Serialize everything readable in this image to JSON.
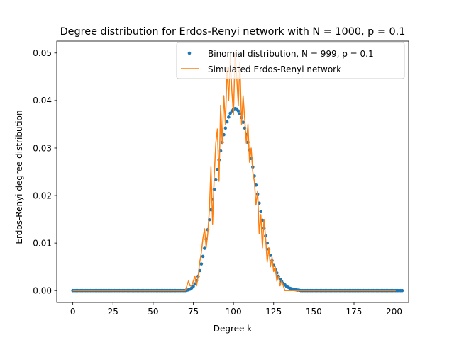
{
  "chart_data": {
    "type": "scatter",
    "title": "Degree distribution for Erdos-Renyi network with N = 1000, p = 0.1",
    "xlabel": "Degree k",
    "ylabel": "Erdos-Renyi degree distribution",
    "xlim": [
      -10,
      209
    ],
    "ylim": [
      -0.0025,
      0.0525
    ],
    "xticks": [
      "0",
      "25",
      "50",
      "75",
      "100",
      "125",
      "150",
      "175",
      "200"
    ],
    "yticks": [
      "0.00",
      "0.01",
      "0.02",
      "0.03",
      "0.04",
      "0.05"
    ],
    "grid": false,
    "legend": "top-right",
    "series": [
      {
        "name": "Binomial distribution, N = 999, p = 0.1",
        "kind": "points",
        "color": "#1f77b4",
        "x_start": 0,
        "x_step": 1,
        "values": [
          0,
          0,
          0,
          0,
          0,
          0,
          0,
          0,
          0,
          0,
          0,
          0,
          0,
          0,
          0,
          0,
          0,
          0,
          0,
          0,
          0,
          0,
          0,
          0,
          0,
          0,
          0,
          0,
          0,
          0,
          0,
          0,
          0,
          0,
          0,
          0,
          0,
          0,
          0,
          0,
          0,
          0,
          0,
          0,
          0,
          0,
          0,
          0,
          0,
          0,
          0,
          0,
          0,
          0,
          0,
          0,
          0,
          0,
          0,
          0,
          0,
          0,
          0,
          0,
          0,
          0,
          0,
          0,
          0,
          0,
          0,
          7e-05,
          0.00015,
          0.0003,
          0.00055,
          0.0009,
          0.0014,
          0.0021,
          0.003,
          0.0042,
          0.0056,
          0.0072,
          0.0089,
          0.0108,
          0.0128,
          0.0149,
          0.017,
          0.0192,
          0.0213,
          0.0234,
          0.0255,
          0.0275,
          0.0294,
          0.0312,
          0.0328,
          0.0342,
          0.0355,
          0.0365,
          0.0373,
          0.0378,
          0.0382,
          0.0383,
          0.0382,
          0.0378,
          0.0372,
          0.0364,
          0.0354,
          0.0342,
          0.0328,
          0.0312,
          0.0296,
          0.0278,
          0.026,
          0.0241,
          0.0222,
          0.0203,
          0.0184,
          0.0166,
          0.0148,
          0.0131,
          0.0115,
          0.01,
          0.0087,
          0.0074,
          0.0063,
          0.0053,
          0.0044,
          0.0037,
          0.003,
          0.0024,
          0.0019,
          0.0015,
          0.0012,
          0.0009,
          0.0007,
          0.0005,
          0.0004,
          0.0003,
          0.0002,
          0.00015,
          0.0001,
          7e-05,
          0,
          0,
          0,
          0,
          0,
          0,
          0,
          0,
          0,
          0,
          0,
          0,
          0,
          0,
          0,
          0,
          0,
          0,
          0,
          0,
          0,
          0,
          0,
          0,
          0,
          0,
          0,
          0,
          0,
          0,
          0,
          0,
          0,
          0,
          0,
          0,
          0,
          0,
          0,
          0,
          0,
          0,
          0,
          0,
          0,
          0,
          0,
          0,
          0,
          0,
          0,
          0,
          0,
          0,
          0,
          0,
          0,
          0,
          0,
          0,
          0,
          0,
          0,
          0
        ]
      },
      {
        "name": "Simulated Erdos-Renyi network",
        "kind": "line",
        "color": "#ff7f0e",
        "x_start": 0,
        "x_step": 1,
        "values": [
          0,
          0,
          0,
          0,
          0,
          0,
          0,
          0,
          0,
          0,
          0,
          0,
          0,
          0,
          0,
          0,
          0,
          0,
          0,
          0,
          0,
          0,
          0,
          0,
          0,
          0,
          0,
          0,
          0,
          0,
          0,
          0,
          0,
          0,
          0,
          0,
          0,
          0,
          0,
          0,
          0,
          0,
          0,
          0,
          0,
          0,
          0,
          0,
          0,
          0,
          0,
          0,
          0,
          0,
          0,
          0,
          0,
          0,
          0,
          0,
          0,
          0,
          0,
          0,
          0,
          0,
          0,
          0,
          0,
          0,
          0,
          0.001,
          0.002,
          0.001,
          0.001,
          0.002,
          0.003,
          0.001,
          0.003,
          0.006,
          0.008,
          0.011,
          0.013,
          0.009,
          0.012,
          0.017,
          0.026,
          0.014,
          0.024,
          0.031,
          0.034,
          0.023,
          0.039,
          0.031,
          0.041,
          0.035,
          0.047,
          0.04,
          0.049,
          0.042,
          0.037,
          0.05,
          0.045,
          0.039,
          0.048,
          0.035,
          0.041,
          0.036,
          0.031,
          0.035,
          0.027,
          0.03,
          0.025,
          0.023,
          0.018,
          0.021,
          0.012,
          0.016,
          0.009,
          0.015,
          0.011,
          0.006,
          0.009,
          0.005,
          0.007,
          0.004,
          0.005,
          0.002,
          0.003,
          0.001,
          0.002,
          0.001,
          0,
          0,
          0,
          0,
          0,
          0,
          0,
          0,
          0,
          0,
          0,
          0,
          0,
          0,
          0,
          0,
          0,
          0,
          0,
          0,
          0,
          0,
          0,
          0,
          0,
          0,
          0,
          0,
          0,
          0,
          0,
          0,
          0,
          0,
          0,
          0,
          0,
          0,
          0,
          0,
          0,
          0,
          0,
          0,
          0,
          0,
          0,
          0,
          0,
          0,
          0,
          0,
          0,
          0,
          0,
          0,
          0,
          0,
          0,
          0,
          0,
          0,
          0,
          0,
          0,
          0,
          0,
          0,
          0,
          0
        ]
      }
    ]
  }
}
